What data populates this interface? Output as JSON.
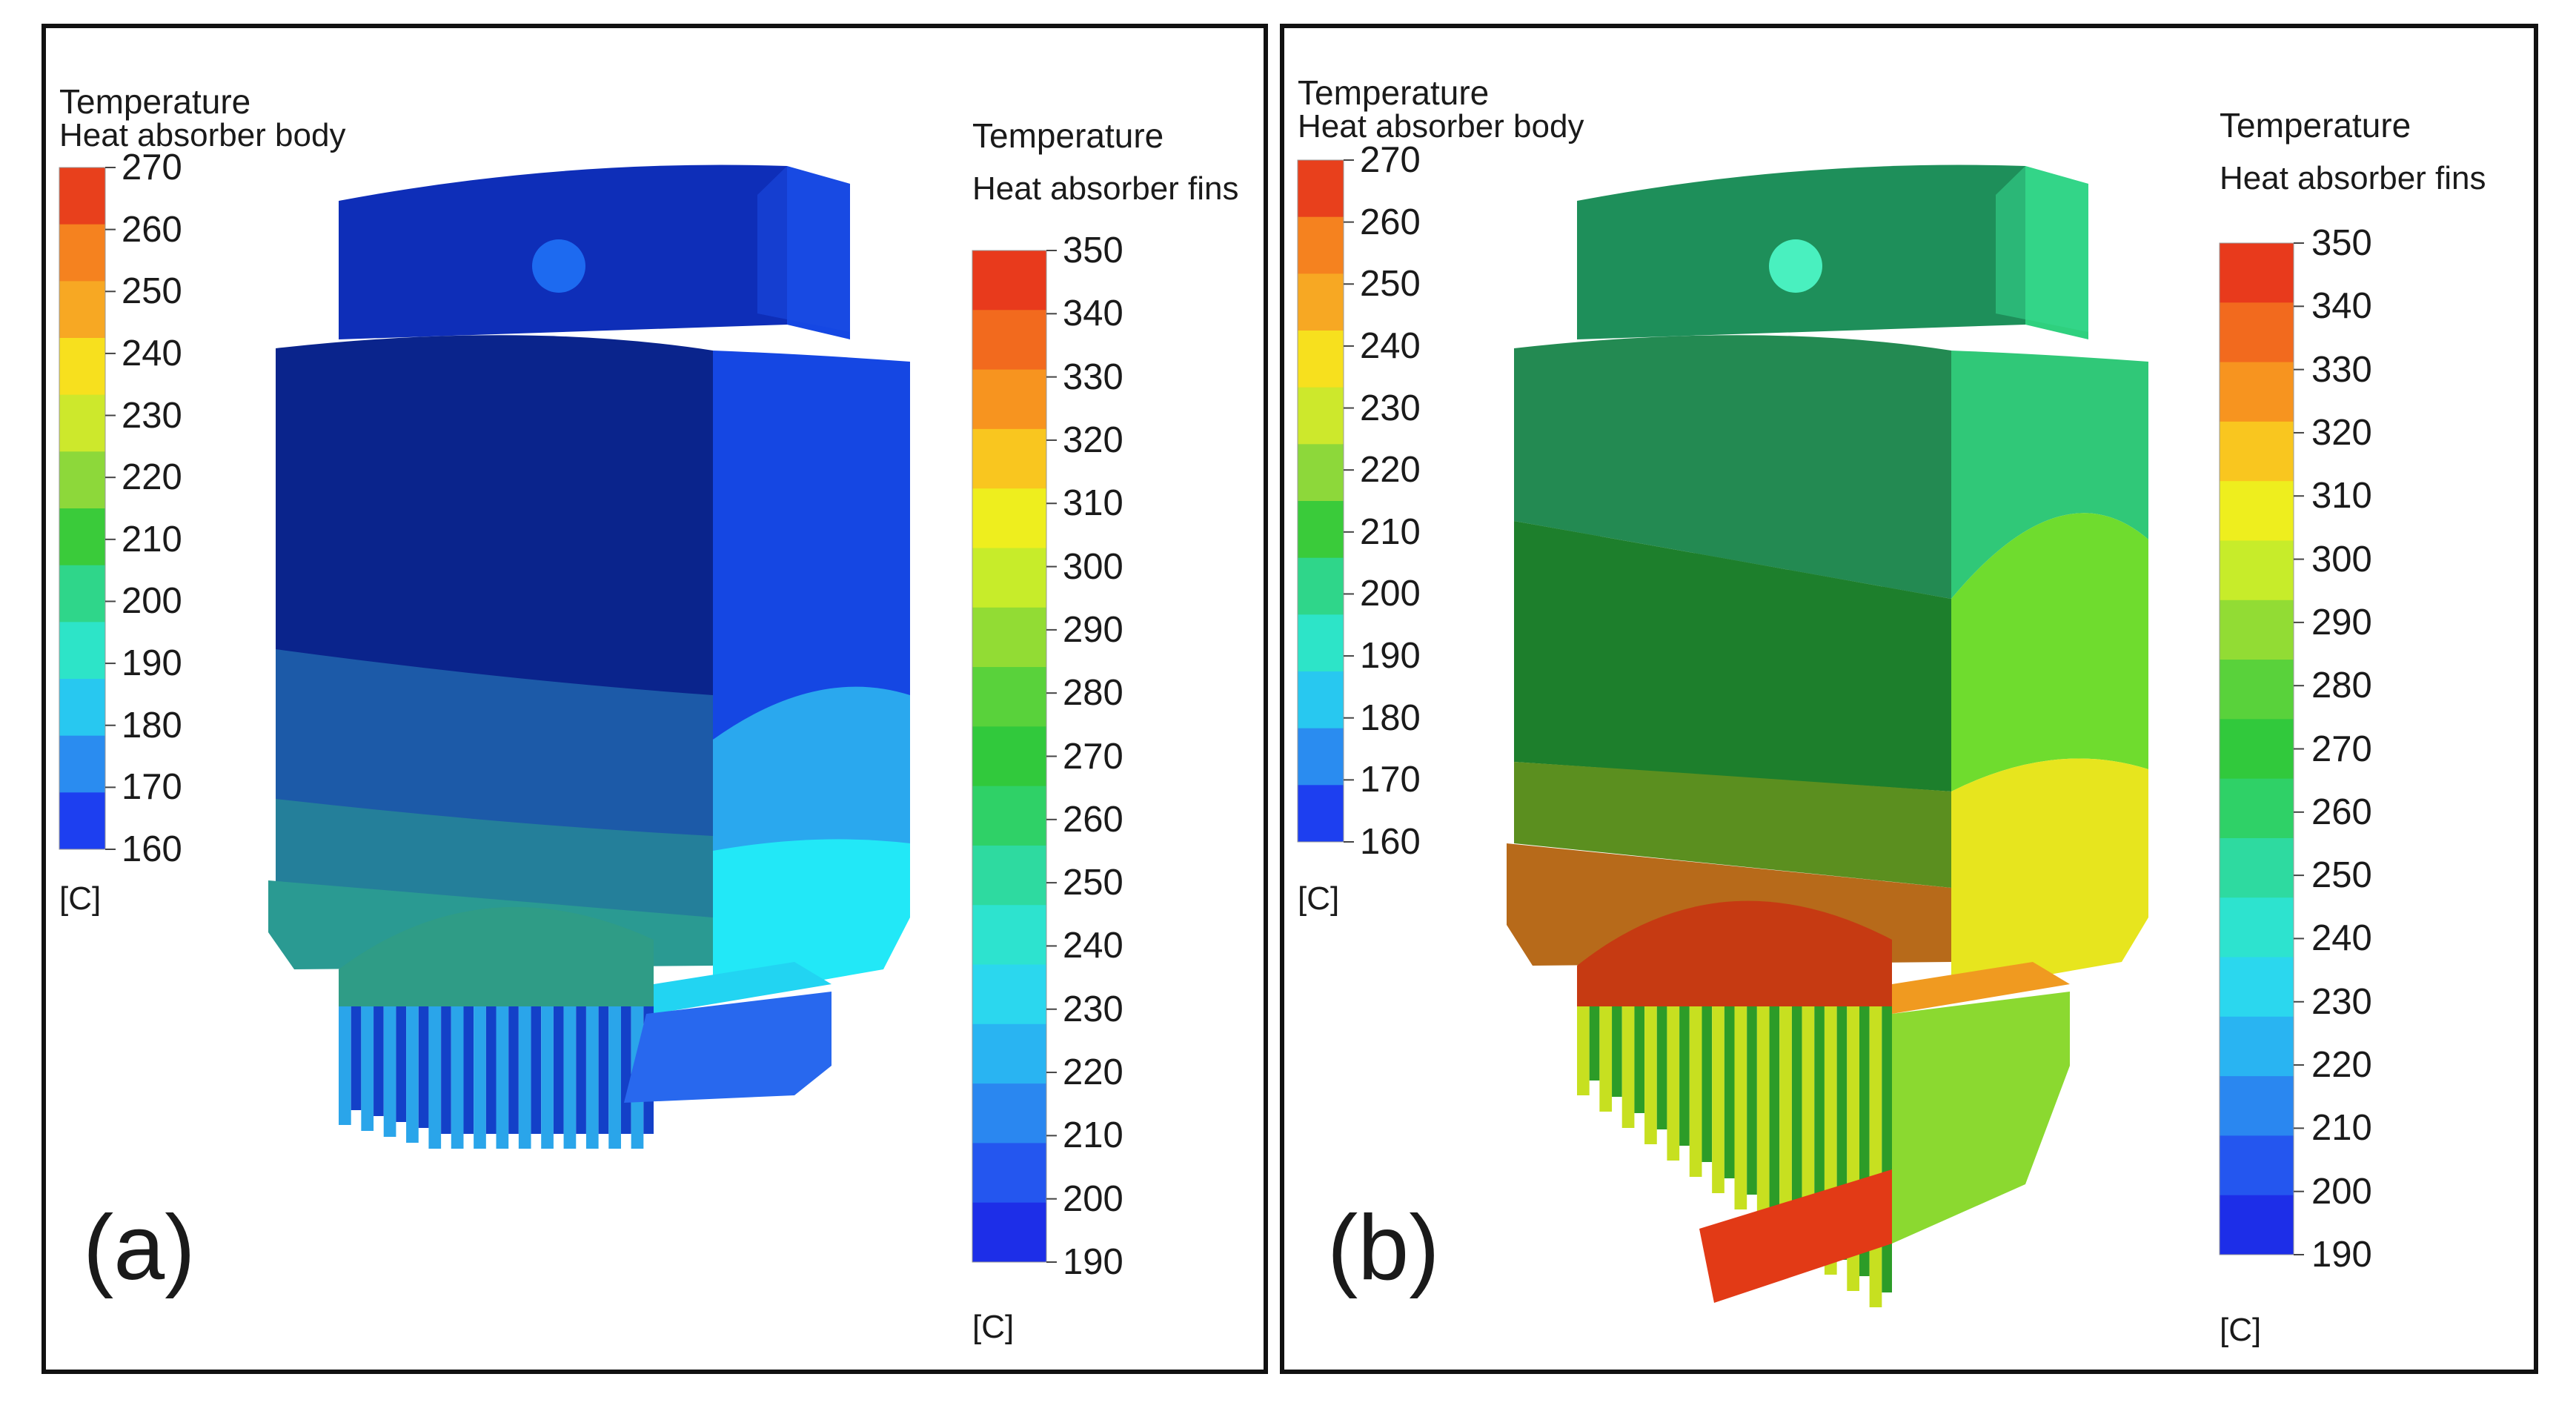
{
  "panels": [
    {
      "letter": "(a)",
      "body_legend": {
        "title": "Temperature",
        "subtitle": "Heat absorber body",
        "ticks": [
          "270",
          "260",
          "250",
          "240",
          "230",
          "220",
          "210",
          "200",
          "190",
          "180",
          "170",
          "160"
        ],
        "unit": "[C]"
      },
      "fins_legend": {
        "title": "Temperature",
        "subtitle": "Heat absorber fins",
        "ticks": [
          "350",
          "340",
          "330",
          "320",
          "310",
          "300",
          "290",
          "280",
          "270",
          "260",
          "250",
          "240",
          "230",
          "220",
          "210",
          "200",
          "190"
        ],
        "unit": "[C]"
      }
    },
    {
      "letter": "(b)",
      "body_legend": {
        "title": "Temperature",
        "subtitle": "Heat absorber body",
        "ticks": [
          "270",
          "260",
          "250",
          "240",
          "230",
          "220",
          "210",
          "200",
          "190",
          "180",
          "170",
          "160"
        ],
        "unit": "[C]"
      },
      "fins_legend": {
        "title": "Temperature",
        "subtitle": "Heat absorber fins",
        "ticks": [
          "350",
          "340",
          "330",
          "320",
          "310",
          "300",
          "290",
          "280",
          "270",
          "260",
          "250",
          "240",
          "230",
          "220",
          "210",
          "200",
          "190"
        ],
        "unit": "[C]"
      }
    }
  ],
  "colors": {
    "body_scale": [
      "#e8401c",
      "#f5821f",
      "#f7a823",
      "#f7e01e",
      "#cde82c",
      "#8dd83a",
      "#3acb3a",
      "#2fd68a",
      "#2de4c8",
      "#28c8f0",
      "#2a8cf0",
      "#1d3ff0"
    ],
    "fins_scale": [
      "#e83a1c",
      "#f26a1e",
      "#f7941f",
      "#f9c61f",
      "#eeee1e",
      "#c7ec2a",
      "#92dc34",
      "#59d23b",
      "#31c93c",
      "#2fd167",
      "#2edaa0",
      "#2de3cf",
      "#2bd7ee",
      "#29b4f2",
      "#2a87f0",
      "#2456ef",
      "#1d2ee8"
    ],
    "panel_a": {
      "top_front": "#0e2eb8",
      "top_side": "#1547e3",
      "top_cap": "#1b4de4",
      "hole": "#1d6af0",
      "body_front_top": "#0a248c",
      "body_front_mid": "#1c5aa8",
      "body_front_low": "#247f9a",
      "body_front_base": "#2a9a92",
      "body_side_top": "#1547e3",
      "body_side_mid": "#2aa8ee",
      "body_side_low": "#22e8f7",
      "disc": "#2f9c86",
      "flange": "#22d4f2",
      "fins": "#2aa5ea",
      "fin_gap": "#1340c8",
      "fins_side": "#2868ee"
    },
    "panel_b": {
      "top_front": "#1e8f5a",
      "top_side": "#2fd07e",
      "top_cap": "#37d88f",
      "hole": "#49f0bf",
      "body_front_top": "#238a52",
      "body_front_mid": "#1d7f2c",
      "body_front_low": "#5b8f1f",
      "body_front_base": "#b76a1a",
      "body_side_top": "#30c878",
      "body_side_mid": "#6fdc2e",
      "body_side_low": "#e7e51e",
      "disc": "#c63a12",
      "flange": "#f09a20",
      "fins": "#c7e020",
      "fin_gap": "#2c9c28",
      "fins_side": "#8bd930",
      "tip": "#e23a16"
    }
  }
}
